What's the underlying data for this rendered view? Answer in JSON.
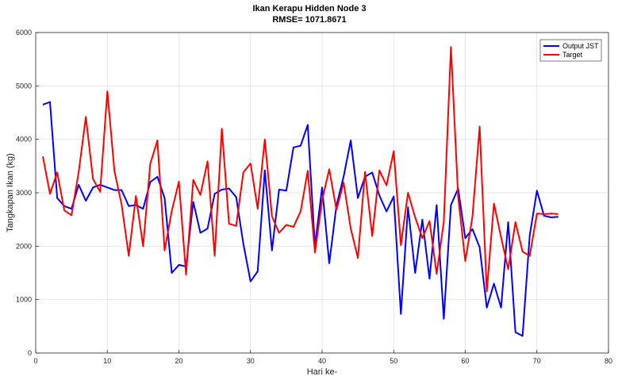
{
  "chart_data": {
    "type": "line",
    "title": "Ikan Kerapu Hidden Node 3",
    "subtitle": "RMSE= 1071.8671",
    "xlabel": "Hari ke-",
    "ylabel": "Tangkapan Ikan (kg)",
    "xlim": [
      0,
      80
    ],
    "ylim": [
      0,
      6000
    ],
    "xticks": [
      0,
      10,
      20,
      30,
      40,
      50,
      60,
      70,
      80
    ],
    "yticks": [
      0,
      1000,
      2000,
      3000,
      4000,
      5000,
      6000
    ],
    "grid": true,
    "legend_position": "top-right",
    "x": [
      1,
      2,
      3,
      4,
      5,
      6,
      7,
      8,
      9,
      10,
      11,
      12,
      13,
      14,
      15,
      16,
      17,
      18,
      19,
      20,
      21,
      22,
      23,
      24,
      25,
      26,
      27,
      28,
      29,
      30,
      31,
      32,
      33,
      34,
      35,
      36,
      37,
      38,
      39,
      40,
      41,
      42,
      43,
      44,
      45,
      46,
      47,
      48,
      49,
      50,
      51,
      52,
      53,
      54,
      55,
      56,
      57,
      58,
      59,
      60,
      61,
      62,
      63,
      64,
      65,
      66,
      67,
      68,
      69,
      70,
      71,
      72,
      73
    ],
    "series": [
      {
        "name": "Output JST",
        "color": "#0000ff",
        "values": [
          4650,
          4700,
          2900,
          2750,
          2700,
          3150,
          2850,
          3100,
          3150,
          3100,
          3050,
          3050,
          2750,
          2770,
          2700,
          3200,
          3300,
          2900,
          1500,
          1650,
          1620,
          2830,
          2250,
          2330,
          2980,
          3060,
          3080,
          2920,
          2050,
          1340,
          1530,
          3420,
          1920,
          3060,
          3040,
          3850,
          3880,
          4270,
          2000,
          3100,
          1680,
          2760,
          3300,
          3980,
          2900,
          3300,
          3380,
          2950,
          2650,
          2930,
          730,
          2730,
          1500,
          2500,
          1390,
          2770,
          640,
          2770,
          3080,
          2150,
          2320,
          1980,
          850,
          1300,
          850,
          2450,
          390,
          320,
          2200,
          3040,
          2570,
          2540,
          2550
        ]
      },
      {
        "name": "Target",
        "color": "#ff0000",
        "values": [
          3680,
          2980,
          3380,
          2670,
          2580,
          3390,
          4420,
          3260,
          3020,
          4900,
          3400,
          2780,
          1820,
          2940,
          2000,
          3540,
          3980,
          1920,
          2660,
          3210,
          1470,
          3240,
          2960,
          3590,
          1820,
          4200,
          2420,
          2380,
          3380,
          3550,
          2700,
          4000,
          2560,
          2250,
          2400,
          2360,
          2650,
          3410,
          1880,
          2860,
          3440,
          2680,
          3190,
          2330,
          1780,
          3390,
          2190,
          3420,
          3140,
          3780,
          2020,
          3000,
          2540,
          2150,
          2470,
          1480,
          2460,
          5730,
          2920,
          1720,
          2550,
          4240,
          1150,
          2800,
          2170,
          1570,
          2450,
          1900,
          1820,
          2610,
          2600,
          2610,
          2600
        ]
      }
    ]
  }
}
